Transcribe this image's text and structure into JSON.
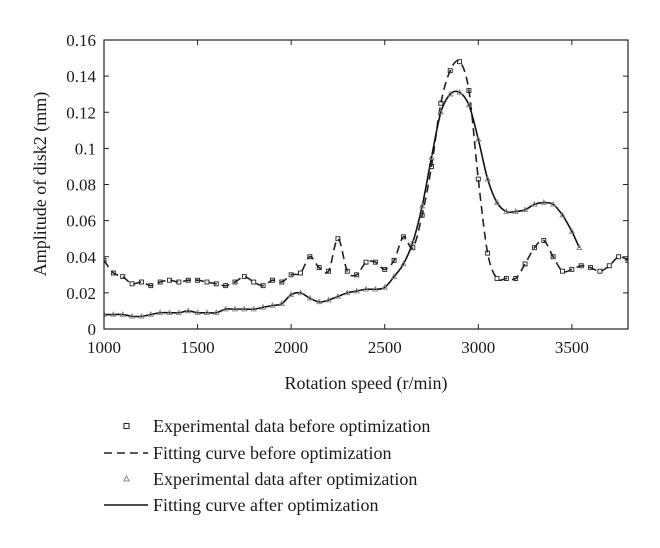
{
  "chart_data": {
    "type": "line",
    "title": "",
    "xlabel": "Rotation speed (r/min)",
    "ylabel": "Amplitude of disk2 (mm)",
    "xlim": [
      1000,
      3800
    ],
    "ylim": [
      0,
      0.16
    ],
    "x_ticks": [
      "1000",
      "1500",
      "2000",
      "2500",
      "3000",
      "3500"
    ],
    "y_ticks": [
      "0",
      "0.02",
      "0.04",
      "0.06",
      "0.08",
      "0.1",
      "0.12",
      "0.14",
      "0.16"
    ],
    "grid": false,
    "legend_position": "below",
    "series": [
      {
        "name": "Experimental data before optimization",
        "style": "square-markers",
        "color": "#222222",
        "x": [
          1000,
          1050,
          1100,
          1150,
          1200,
          1250,
          1300,
          1350,
          1400,
          1450,
          1500,
          1550,
          1600,
          1650,
          1700,
          1750,
          1800,
          1850,
          1900,
          1950,
          2000,
          2050,
          2100,
          2150,
          2200,
          2250,
          2300,
          2350,
          2400,
          2450,
          2500,
          2550,
          2600,
          2650,
          2700,
          2750,
          2800,
          2850,
          2900,
          2950,
          3000,
          3050,
          3100,
          3150,
          3200,
          3250,
          3300,
          3350,
          3400,
          3450,
          3500,
          3550,
          3600,
          3650,
          3700,
          3750,
          3800
        ],
        "y": [
          0.038,
          0.031,
          0.029,
          0.025,
          0.026,
          0.024,
          0.026,
          0.027,
          0.026,
          0.027,
          0.027,
          0.026,
          0.025,
          0.024,
          0.026,
          0.029,
          0.026,
          0.024,
          0.027,
          0.026,
          0.03,
          0.031,
          0.04,
          0.034,
          0.032,
          0.05,
          0.032,
          0.03,
          0.037,
          0.037,
          0.033,
          0.038,
          0.051,
          0.045,
          0.063,
          0.09,
          0.125,
          0.143,
          0.148,
          0.132,
          0.083,
          0.042,
          0.028,
          0.028,
          0.028,
          0.036,
          0.045,
          0.049,
          0.04,
          0.032,
          0.033,
          0.035,
          0.034,
          0.032,
          0.035,
          0.04,
          0.038
        ]
      },
      {
        "name": "Fitting curve before optimization",
        "style": "dashed",
        "color": "#222222",
        "x": [
          1000,
          1050,
          1100,
          1150,
          1200,
          1250,
          1300,
          1350,
          1400,
          1450,
          1500,
          1550,
          1600,
          1650,
          1700,
          1750,
          1800,
          1850,
          1900,
          1950,
          2000,
          2050,
          2100,
          2150,
          2200,
          2250,
          2300,
          2350,
          2400,
          2450,
          2500,
          2550,
          2600,
          2650,
          2700,
          2750,
          2800,
          2850,
          2900,
          2950,
          3000,
          3050,
          3100,
          3150,
          3200,
          3250,
          3300,
          3350,
          3400,
          3450,
          3500,
          3550,
          3600,
          3650,
          3700,
          3750,
          3800
        ],
        "y": [
          0.038,
          0.031,
          0.029,
          0.025,
          0.026,
          0.024,
          0.026,
          0.027,
          0.026,
          0.027,
          0.027,
          0.026,
          0.025,
          0.024,
          0.026,
          0.029,
          0.026,
          0.024,
          0.027,
          0.026,
          0.03,
          0.031,
          0.04,
          0.034,
          0.032,
          0.05,
          0.032,
          0.03,
          0.037,
          0.037,
          0.033,
          0.038,
          0.051,
          0.045,
          0.063,
          0.09,
          0.125,
          0.143,
          0.148,
          0.132,
          0.083,
          0.042,
          0.028,
          0.028,
          0.028,
          0.036,
          0.045,
          0.049,
          0.04,
          0.032,
          0.033,
          0.035,
          0.034,
          0.032,
          0.035,
          0.04,
          0.038
        ]
      },
      {
        "name": "Experimental data after optimization",
        "style": "triangle-markers",
        "color": "#888888",
        "x": [
          1000,
          1050,
          1100,
          1150,
          1200,
          1250,
          1300,
          1350,
          1400,
          1450,
          1500,
          1550,
          1600,
          1650,
          1700,
          1750,
          1800,
          1850,
          1900,
          1950,
          2000,
          2050,
          2100,
          2150,
          2200,
          2250,
          2300,
          2350,
          2400,
          2450,
          2500,
          2550,
          2600,
          2650,
          2700,
          2750,
          2800,
          2850,
          2900,
          2950,
          3000,
          3050,
          3100,
          3150,
          3200,
          3250,
          3300,
          3350,
          3400,
          3450,
          3500,
          3540
        ],
        "y": [
          0.008,
          0.008,
          0.008,
          0.007,
          0.007,
          0.008,
          0.009,
          0.009,
          0.009,
          0.01,
          0.009,
          0.009,
          0.009,
          0.011,
          0.011,
          0.011,
          0.011,
          0.012,
          0.013,
          0.014,
          0.019,
          0.02,
          0.017,
          0.015,
          0.016,
          0.018,
          0.02,
          0.021,
          0.022,
          0.022,
          0.023,
          0.029,
          0.036,
          0.048,
          0.068,
          0.095,
          0.12,
          0.13,
          0.131,
          0.124,
          0.105,
          0.083,
          0.07,
          0.065,
          0.065,
          0.066,
          0.069,
          0.07,
          0.069,
          0.063,
          0.054,
          0.045
        ]
      },
      {
        "name": "Fitting curve after optimization",
        "style": "solid",
        "color": "#111111",
        "x": [
          1000,
          1050,
          1100,
          1150,
          1200,
          1250,
          1300,
          1350,
          1400,
          1450,
          1500,
          1550,
          1600,
          1650,
          1700,
          1750,
          1800,
          1850,
          1900,
          1950,
          2000,
          2050,
          2100,
          2150,
          2200,
          2250,
          2300,
          2350,
          2400,
          2450,
          2500,
          2550,
          2600,
          2650,
          2700,
          2750,
          2800,
          2850,
          2900,
          2950,
          3000,
          3050,
          3100,
          3150,
          3200,
          3250,
          3300,
          3350,
          3400,
          3450,
          3500,
          3540
        ],
        "y": [
          0.008,
          0.008,
          0.008,
          0.007,
          0.007,
          0.008,
          0.009,
          0.009,
          0.009,
          0.01,
          0.009,
          0.009,
          0.009,
          0.011,
          0.011,
          0.011,
          0.011,
          0.012,
          0.013,
          0.014,
          0.019,
          0.02,
          0.017,
          0.015,
          0.016,
          0.018,
          0.02,
          0.021,
          0.022,
          0.022,
          0.023,
          0.029,
          0.036,
          0.048,
          0.068,
          0.095,
          0.12,
          0.13,
          0.131,
          0.124,
          0.105,
          0.083,
          0.07,
          0.065,
          0.065,
          0.066,
          0.069,
          0.07,
          0.069,
          0.063,
          0.054,
          0.045
        ]
      }
    ]
  }
}
